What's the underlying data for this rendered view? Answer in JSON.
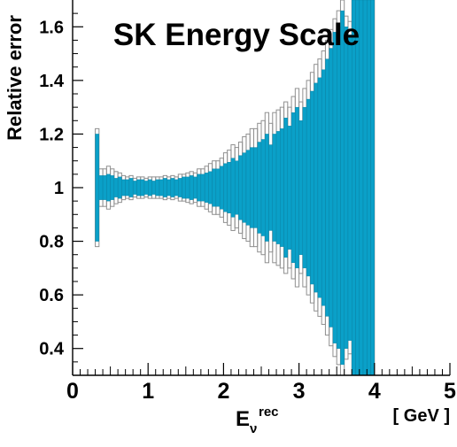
{
  "chart_data": {
    "type": "bar",
    "title": "SK Energy Scale",
    "ylabel": "Relative error",
    "xlabel": "E",
    "xlabel_sub": "ν",
    "xlabel_sup": "rec",
    "xunit": "[ GeV ]",
    "xlim": [
      0,
      5
    ],
    "ylim": [
      0.3,
      1.7
    ],
    "x_ticks": [
      0,
      1,
      2,
      3,
      4,
      5
    ],
    "x_tick_labels": [
      "0",
      "1",
      "2",
      "3",
      "4",
      "5"
    ],
    "y_ticks": [
      0.4,
      0.6,
      0.8,
      1.0,
      1.2,
      1.4,
      1.6
    ],
    "y_tick_labels": [
      "0.4",
      "0.6",
      "0.8",
      "1",
      "1.2",
      "1.4",
      "1.6"
    ],
    "grid": false,
    "bin_width": 0.05,
    "bin_start": 0.3,
    "fill_color": "#0aa0c8",
    "outline_color": "#909090",
    "series": [
      {
        "kind": "filled band, half-width about 1",
        "half_width": [
          0.2,
          0.045,
          0.045,
          0.05,
          0.045,
          0.035,
          0.04,
          0.03,
          0.03,
          0.035,
          0.025,
          0.03,
          0.03,
          0.025,
          0.03,
          0.025,
          0.03,
          0.03,
          0.035,
          0.03,
          0.035,
          0.03,
          0.035,
          0.04,
          0.04,
          0.045,
          0.04,
          0.05,
          0.05,
          0.055,
          0.06,
          0.07,
          0.07,
          0.08,
          0.09,
          0.095,
          0.11,
          0.1,
          0.12,
          0.13,
          0.14,
          0.15,
          0.15,
          0.17,
          0.18,
          0.2,
          0.16,
          0.2,
          0.21,
          0.22,
          0.26,
          0.23,
          0.28,
          0.3,
          0.25,
          0.3,
          0.33,
          0.36,
          0.39,
          0.41,
          0.44,
          0.48,
          0.52,
          0.58,
          0.6,
          0.66,
          0.6,
          0.57,
          0.76,
          0.8,
          0.82,
          0.85,
          0.88,
          0.9
        ]
      },
      {
        "kind": "outlined band, half-width about 1",
        "half_width": [
          0.22,
          0.07,
          0.07,
          0.08,
          0.07,
          0.06,
          0.055,
          0.045,
          0.04,
          0.045,
          0.035,
          0.04,
          0.04,
          0.035,
          0.04,
          0.04,
          0.04,
          0.04,
          0.045,
          0.04,
          0.045,
          0.04,
          0.05,
          0.05,
          0.055,
          0.06,
          0.055,
          0.07,
          0.07,
          0.08,
          0.09,
          0.1,
          0.1,
          0.11,
          0.13,
          0.14,
          0.16,
          0.15,
          0.17,
          0.19,
          0.2,
          0.22,
          0.22,
          0.24,
          0.25,
          0.28,
          0.24,
          0.28,
          0.29,
          0.3,
          0.32,
          0.3,
          0.34,
          0.37,
          0.32,
          0.37,
          0.4,
          0.43,
          0.46,
          0.48,
          0.51,
          0.55,
          0.59,
          0.63,
          0.66,
          0.7,
          0.64,
          0.62,
          0.8,
          0.85,
          0.88,
          0.9,
          0.92,
          0.94
        ]
      }
    ]
  }
}
